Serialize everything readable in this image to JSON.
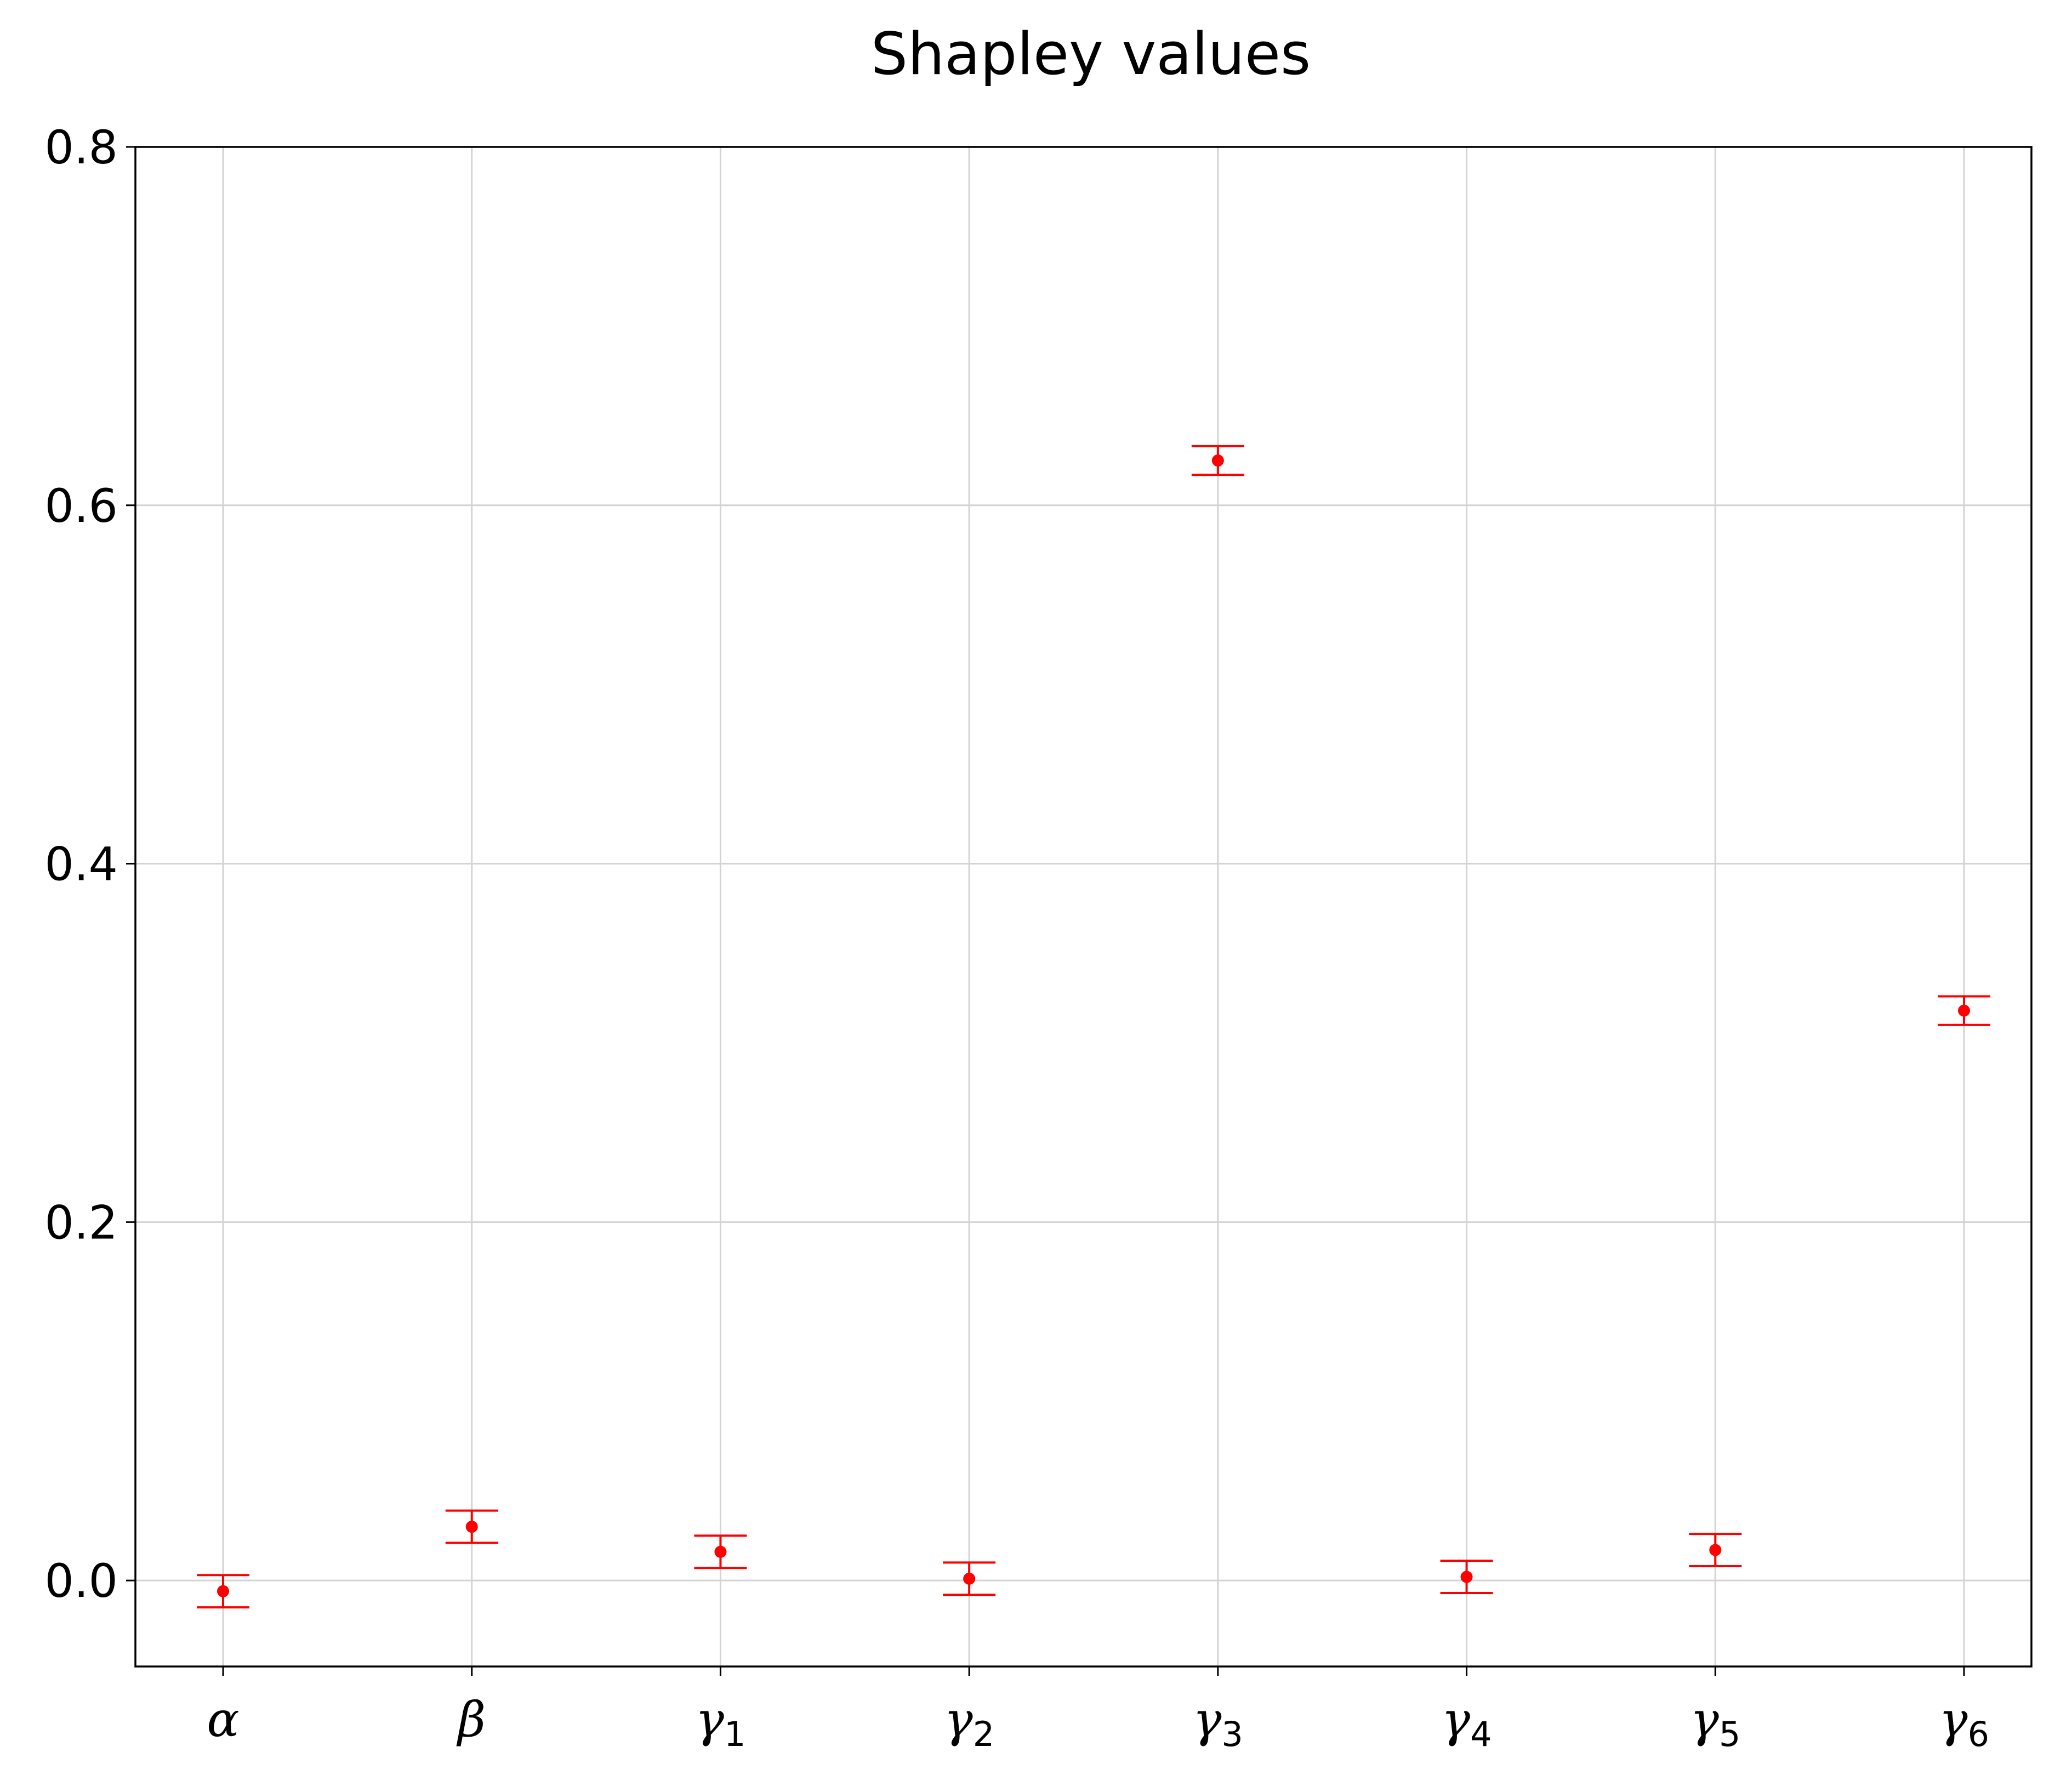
{
  "chart_data": {
    "type": "scatter",
    "title": "Shapley values",
    "xlabel": "",
    "ylabel": "",
    "categories": [
      {
        "base": "α",
        "sub": ""
      },
      {
        "base": "β",
        "sub": ""
      },
      {
        "base": "γ",
        "sub": "1"
      },
      {
        "base": "γ",
        "sub": "2"
      },
      {
        "base": "γ",
        "sub": "3"
      },
      {
        "base": "γ",
        "sub": "4"
      },
      {
        "base": "γ",
        "sub": "5"
      },
      {
        "base": "γ",
        "sub": "6"
      }
    ],
    "series": [
      {
        "values": [
          -0.006,
          0.03,
          0.016,
          0.001,
          0.625,
          0.002,
          0.017,
          0.318
        ],
        "errors": [
          0.009,
          0.009,
          0.009,
          0.009,
          0.008,
          0.009,
          0.009,
          0.008
        ],
        "color": "#ff0000"
      }
    ],
    "yticks": [
      "0.0",
      "0.2",
      "0.4",
      "0.6",
      "0.8"
    ],
    "ytick_values": [
      0.0,
      0.2,
      0.4,
      0.6,
      0.8
    ],
    "ylim": [
      -0.048,
      0.8
    ],
    "grid": true
  }
}
